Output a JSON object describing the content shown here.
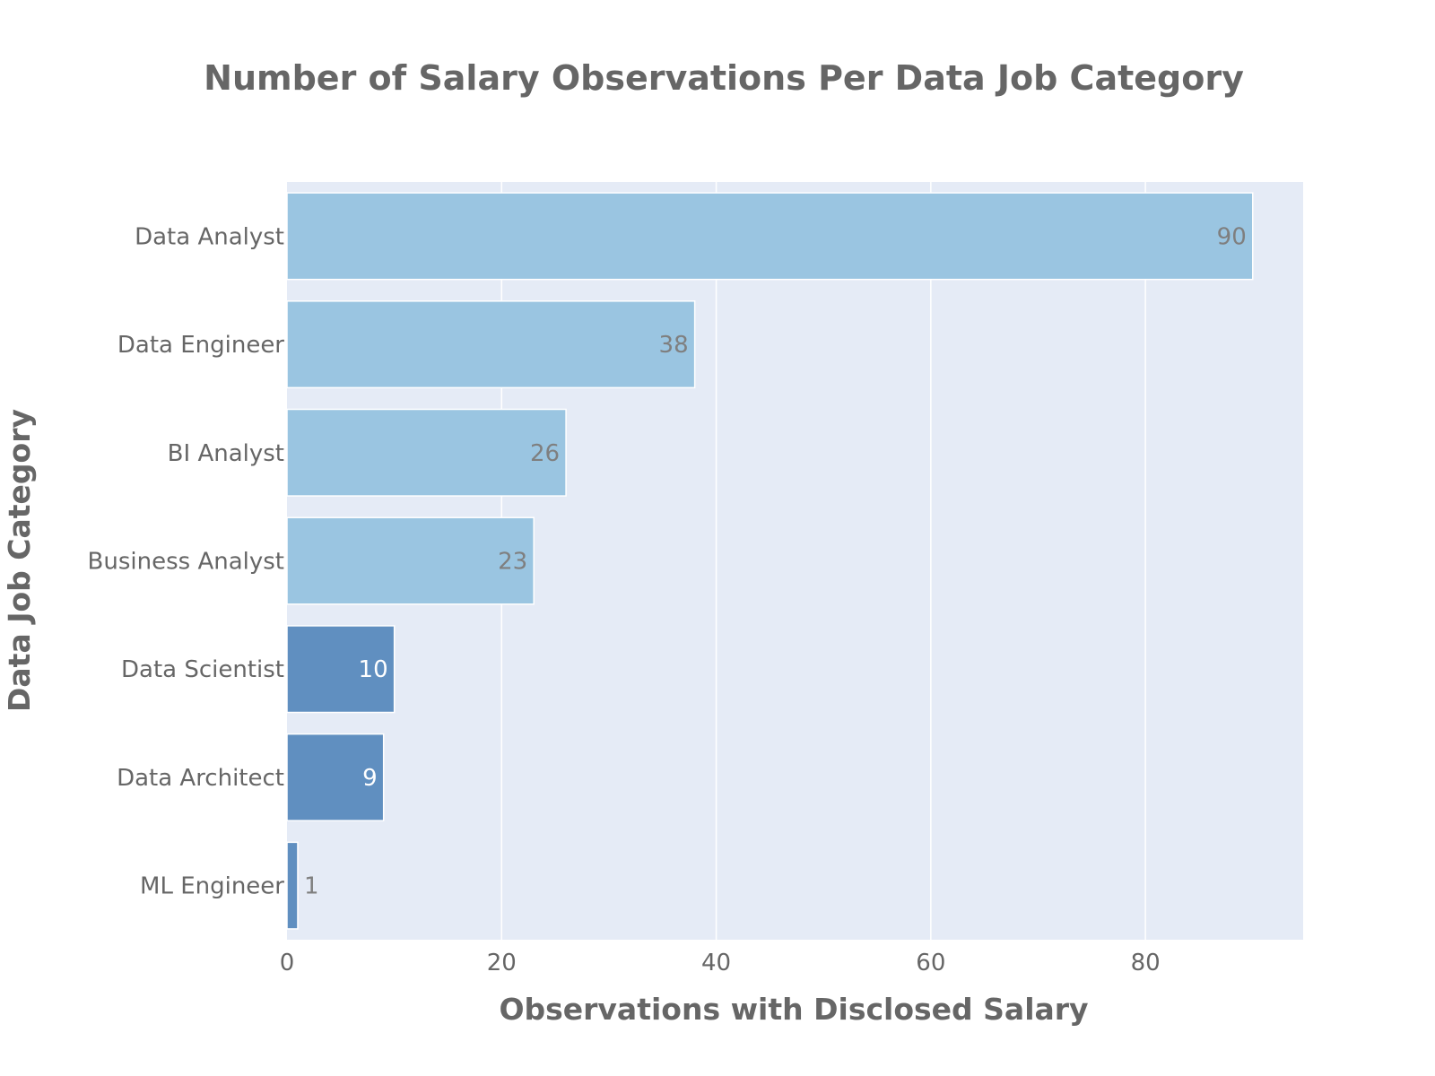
{
  "chart_data": {
    "type": "bar",
    "orientation": "horizontal",
    "title": "Number of Salary Observations Per Data Job Category",
    "xlabel": "Observations with Disclosed Salary",
    "ylabel": "Data Job Category",
    "categories": [
      "Data Analyst",
      "Data Engineer",
      "BI Analyst",
      "Business Analyst",
      "Data Scientist",
      "Data Architect",
      "ML Engineer"
    ],
    "values": [
      90,
      38,
      26,
      23,
      10,
      9,
      1
    ],
    "value_labels": [
      "90",
      "38",
      "26",
      "23",
      "10",
      "9",
      "1"
    ],
    "xlim": [
      0,
      94.7
    ],
    "xticks": [
      0,
      20,
      40,
      60,
      80
    ],
    "xtick_labels": [
      "0",
      "20",
      "40",
      "60",
      "80"
    ],
    "grid": true,
    "colors": {
      "plot_background": "#E5EBF6",
      "grid": "#FFFFFF",
      "bar_light": "#9AC5E1",
      "bar_dark": "#608FC0",
      "label_on_light": "#7F7F7F",
      "label_on_dark": "#FFFFFF",
      "text": "#666666"
    }
  }
}
